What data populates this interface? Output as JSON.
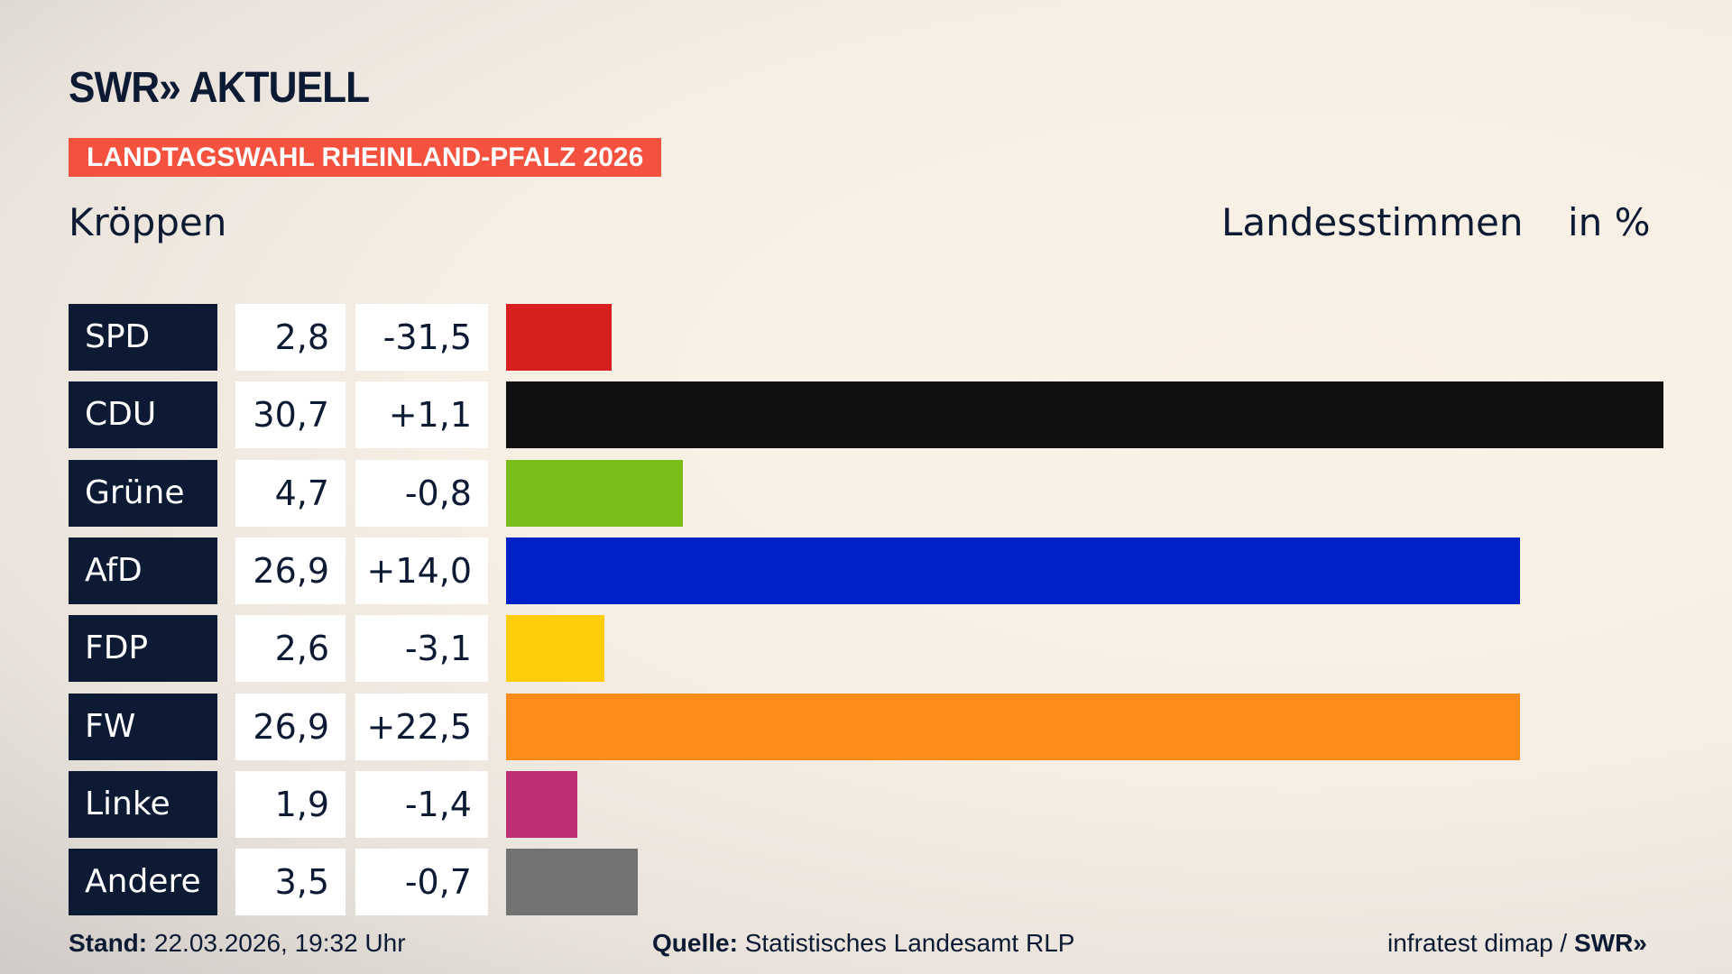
{
  "logo": "SWR» AKTUELL",
  "banner": "LANDTAGSWAHL RHEINLAND-PFALZ 2026",
  "location": "Kröppen",
  "header": {
    "label": "Landesstimmen",
    "unit": "in %"
  },
  "footer": {
    "stand_label": "Stand:",
    "stand_value": "22.03.2026, 19:32 Uhr",
    "source_label": "Quelle:",
    "source_value": "Statistisches Landesamt RLP",
    "credit": "infratest dimap /",
    "credit_logo": "SWR»"
  },
  "chart_data": {
    "type": "bar",
    "orientation": "horizontal",
    "categories": [
      "SPD",
      "CDU",
      "Grüne",
      "AfD",
      "FDP",
      "FW",
      "Linke",
      "Andere"
    ],
    "values": [
      2.8,
      30.7,
      4.7,
      26.9,
      2.6,
      26.9,
      1.9,
      3.5
    ],
    "value_labels": [
      "2,8",
      "30,7",
      "4,7",
      "26,9",
      "2,6",
      "26,9",
      "1,9",
      "3,5"
    ],
    "diff_labels": [
      "-31,5",
      "+1,1",
      "-0,8",
      "+14,0",
      "-3,1",
      "+22,5",
      "-1,4",
      "-0,7"
    ],
    "colors": [
      "#d81f1f",
      "#111111",
      "#79bd1b",
      "#0021c8",
      "#fecd0a",
      "#fd8c19",
      "#bc2f73",
      "#727272"
    ],
    "xlim": [
      0,
      30.7
    ]
  }
}
